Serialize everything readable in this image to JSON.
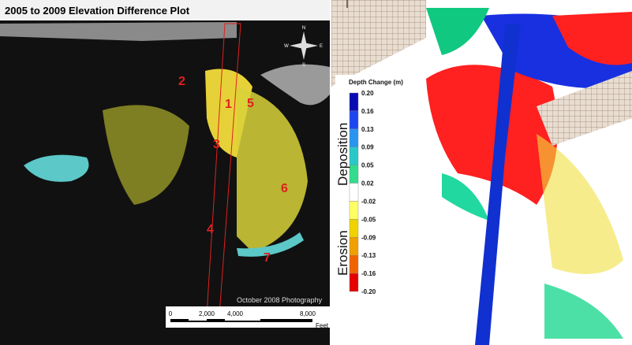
{
  "header": {
    "title": "2005 to 2009 Elevation Difference Plot"
  },
  "left_map": {
    "site_labels": [
      "1",
      "2",
      "3",
      "4",
      "5",
      "6",
      "7"
    ],
    "photo_credit": "October 2008 Photography",
    "compass": {
      "n": "N",
      "s": "S",
      "e": "E",
      "w": "W"
    },
    "scale_bar": {
      "ticks": [
        "0",
        "2,000",
        "4,000",
        "8,000"
      ],
      "unit": "Feet"
    }
  },
  "right_map": {
    "legend": {
      "title": "Depth Change (m)",
      "values": [
        "0.20",
        "0.16",
        "0.13",
        "0.09",
        "0.05",
        "0.02",
        "-0.02",
        "-0.05",
        "-0.09",
        "-0.13",
        "-0.16",
        "-0.20"
      ],
      "deposition": "Deposition",
      "erosion": "Erosion"
    }
  }
}
